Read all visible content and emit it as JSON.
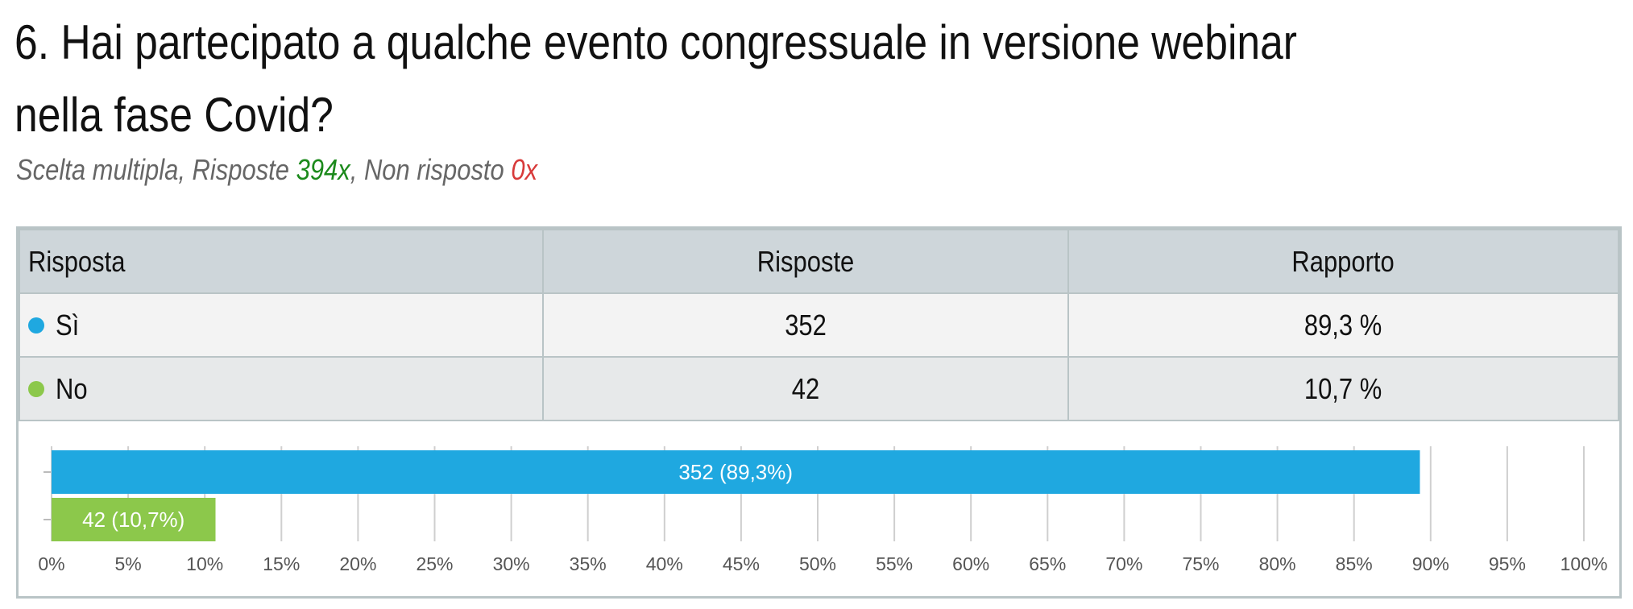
{
  "question": {
    "title": "6. Hai partecipato a qualche evento congressuale in versione webinar nella fase Covid?",
    "subtitle_prefix": "Scelta multipla, Risposte ",
    "answered": "394x",
    "subtitle_middle": ", Non risposto ",
    "unanswered": "0x"
  },
  "table": {
    "headers": [
      "Risposta",
      "Risposte",
      "Rapporto"
    ],
    "rows": [
      {
        "label": "Sì",
        "count": "352",
        "ratio": "89,3 %",
        "color": "#1fa8e0"
      },
      {
        "label": "No",
        "count": "42",
        "ratio": "10,7 %",
        "color": "#8cc84b"
      }
    ]
  },
  "chart_data": {
    "type": "bar",
    "orientation": "horizontal",
    "categories": [
      "Sì",
      "No"
    ],
    "values": [
      89.3,
      10.7
    ],
    "data_labels": [
      "352 (89,3%)",
      "42 (10,7%)"
    ],
    "colors": [
      "#1fa8e0",
      "#8cc84b"
    ],
    "xlim": [
      0,
      100
    ],
    "xticks": [
      "0%",
      "5%",
      "10%",
      "15%",
      "20%",
      "25%",
      "30%",
      "35%",
      "40%",
      "45%",
      "50%",
      "55%",
      "60%",
      "65%",
      "70%",
      "75%",
      "80%",
      "85%",
      "90%",
      "95%",
      "100%"
    ],
    "grid": true
  }
}
